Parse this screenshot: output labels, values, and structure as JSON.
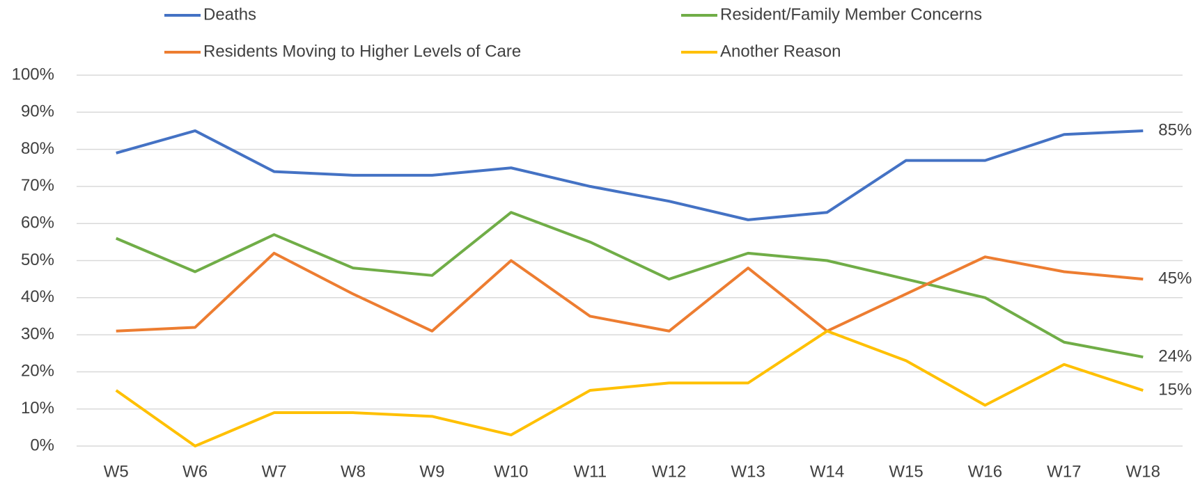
{
  "chart_data": {
    "type": "line",
    "categories": [
      "W5",
      "W6",
      "W7",
      "W8",
      "W9",
      "W10",
      "W11",
      "W12",
      "W13",
      "W14",
      "W15",
      "W16",
      "W17",
      "W18"
    ],
    "series": [
      {
        "name": "Deaths",
        "color": "#4472c4",
        "values": [
          79,
          85,
          74,
          73,
          73,
          75,
          70,
          66,
          61,
          63,
          77,
          77,
          84,
          85
        ],
        "value_labels": [
          null,
          null,
          null,
          null,
          null,
          null,
          null,
          null,
          null,
          null,
          null,
          null,
          null,
          "85%"
        ]
      },
      {
        "name": "Resident/Family Member Concerns",
        "color": "#70ad47",
        "values": [
          56,
          47,
          57,
          48,
          46,
          63,
          55,
          45,
          52,
          50,
          45,
          40,
          28,
          24
        ],
        "value_labels": [
          null,
          null,
          null,
          null,
          null,
          null,
          null,
          null,
          null,
          null,
          null,
          null,
          null,
          "24%"
        ]
      },
      {
        "name": "Residents Moving to Higher Levels of Care",
        "color": "#ed7d31",
        "values": [
          31,
          32,
          52,
          41,
          31,
          50,
          35,
          31,
          48,
          31,
          41,
          51,
          47,
          45
        ],
        "value_labels": [
          null,
          null,
          null,
          null,
          null,
          null,
          null,
          null,
          null,
          null,
          null,
          null,
          null,
          "45%"
        ]
      },
      {
        "name": "Another Reason",
        "color": "#ffc000",
        "values": [
          15,
          0,
          9,
          9,
          8,
          3,
          15,
          17,
          17,
          31,
          23,
          11,
          22,
          15
        ],
        "value_labels": [
          null,
          null,
          null,
          null,
          null,
          null,
          null,
          null,
          null,
          null,
          null,
          null,
          null,
          "15%"
        ]
      }
    ],
    "ylim": [
      0,
      100
    ],
    "yticks": [
      {
        "value": 0,
        "label": "0%"
      },
      {
        "value": 10,
        "label": "10%"
      },
      {
        "value": 20,
        "label": "20%"
      },
      {
        "value": 30,
        "label": "30%"
      },
      {
        "value": 40,
        "label": "40%"
      },
      {
        "value": 50,
        "label": "50%"
      },
      {
        "value": 60,
        "label": "60%"
      },
      {
        "value": 70,
        "label": "70%"
      },
      {
        "value": 80,
        "label": "80%"
      },
      {
        "value": 90,
        "label": "90%"
      },
      {
        "value": 100,
        "label": "100%"
      }
    ],
    "grid": true
  }
}
